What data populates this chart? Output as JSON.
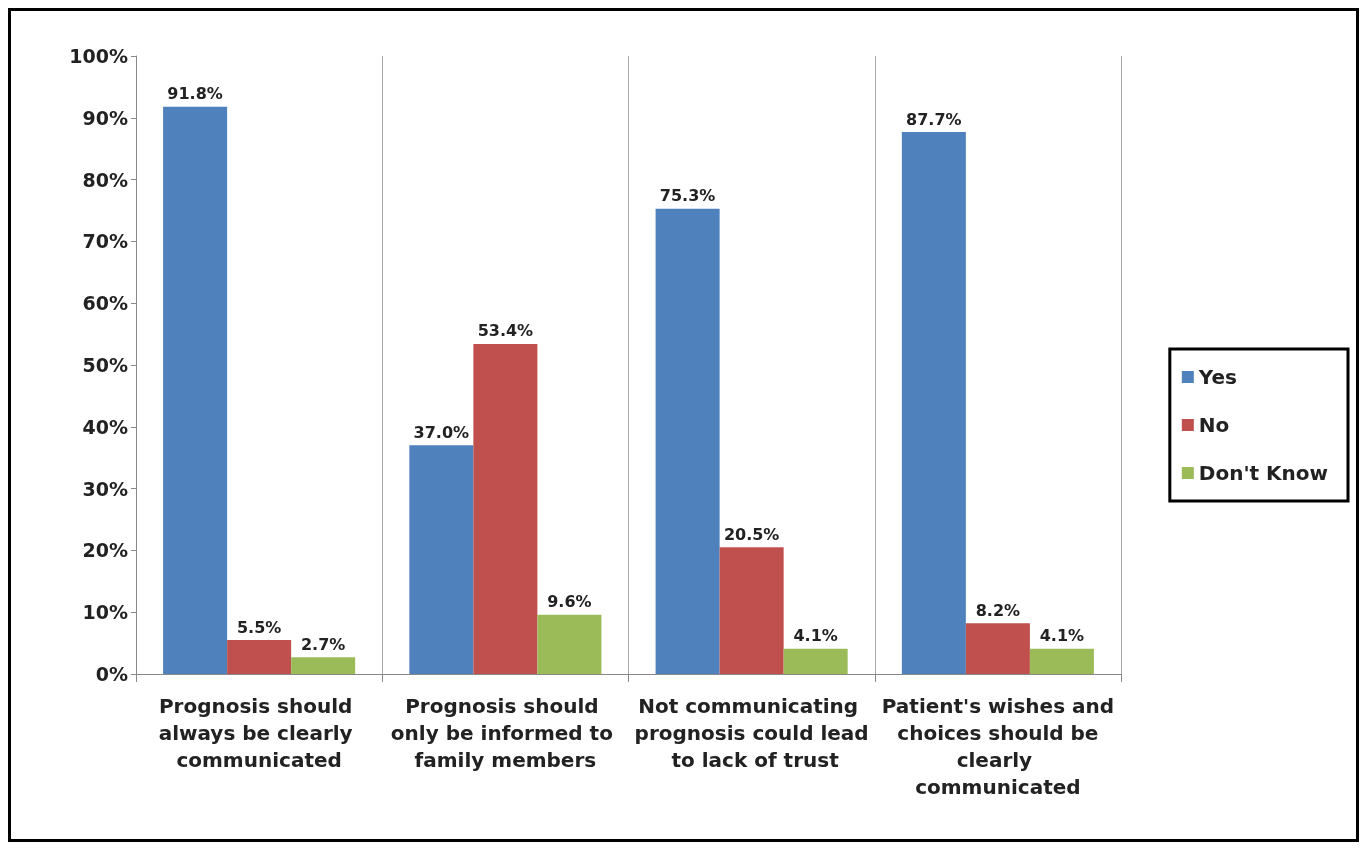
{
  "chart_data": {
    "type": "bar",
    "categories": [
      "Prognosis should always be clearly communicated",
      "Prognosis should only be informed to family members",
      "Not communicating prognosis could lead to lack of trust",
      "Patient's wishes and choices should be clearly communicated"
    ],
    "series": [
      {
        "name": "Yes",
        "color": "#4f81bd",
        "values": [
          91.8,
          37.0,
          75.3,
          87.7
        ],
        "value_labels": [
          "91.8%",
          "37.0%",
          "75.3%",
          "87.7%"
        ]
      },
      {
        "name": "No",
        "color": "#c0504d",
        "values": [
          5.5,
          53.4,
          20.5,
          8.2
        ],
        "value_labels": [
          "5.5%",
          "53.4%",
          "20.5%",
          "8.2%"
        ]
      },
      {
        "name": "Don't Know",
        "color": "#9bbb59",
        "values": [
          2.7,
          9.6,
          4.1,
          4.1
        ],
        "value_labels": [
          "2.7%",
          "9.6%",
          "4.1%",
          "4.1%"
        ]
      }
    ],
    "ylim": [
      0,
      100
    ],
    "yticks": [
      {
        "value": 0,
        "label": "0%"
      },
      {
        "value": 10,
        "label": "10%"
      },
      {
        "value": 20,
        "label": "20%"
      },
      {
        "value": 30,
        "label": "30%"
      },
      {
        "value": 40,
        "label": "40%"
      },
      {
        "value": 50,
        "label": "50%"
      },
      {
        "value": 60,
        "label": "60%"
      },
      {
        "value": 70,
        "label": "70%"
      },
      {
        "value": 80,
        "label": "80%"
      },
      {
        "value": 90,
        "label": "90%"
      },
      {
        "value": 100,
        "label": "100%"
      }
    ],
    "grid": "x",
    "legend": "right"
  }
}
